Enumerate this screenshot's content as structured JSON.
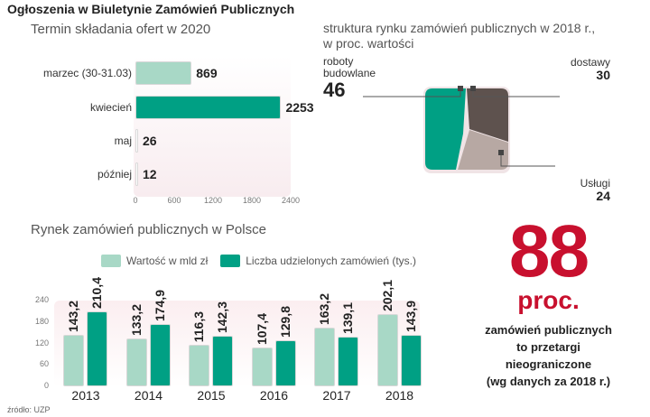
{
  "title": "Ogłoszenia w Biuletynie Zamówień Publicznych",
  "chart_data": [
    {
      "type": "bar",
      "orientation": "horizontal",
      "title": "Termin składania ofert w 2020",
      "categories": [
        "marzec (30-31.03)",
        "kwiecień",
        "maj",
        "później"
      ],
      "values": [
        869,
        2253,
        26,
        12
      ],
      "xticks": [
        "0",
        "600",
        "1200",
        "1800",
        "2400"
      ],
      "xlim": [
        0,
        2400
      ],
      "colors": [
        "#a8d8c6",
        "#00a084",
        "#ffffff",
        "#ffffff"
      ]
    },
    {
      "type": "pie",
      "title": "struktura rynku zamówień publicznych w 2018 r.,",
      "subtitle": "w proc. wartości",
      "slices": [
        {
          "label_line1": "roboty",
          "label_line2": "budowlane",
          "label": "roboty budowlane",
          "value": 46,
          "color": "#00a084"
        },
        {
          "label": "dostawy",
          "value": 30,
          "color": "#5e524e"
        },
        {
          "label": "Usługi",
          "value": 24,
          "color": "#b7a8a3"
        }
      ]
    },
    {
      "type": "bar",
      "title": "Rynek zamówień publicznych w Polsce",
      "categories": [
        "2013",
        "2014",
        "2015",
        "2016",
        "2017",
        "2018"
      ],
      "series": [
        {
          "name": "Wartość w mld zł",
          "values": [
            143.2,
            133.2,
            116.3,
            107.4,
            163.2,
            202.1
          ],
          "labels": [
            "143,2",
            "133,2",
            "116,3",
            "107,4",
            "163,2",
            "202,1"
          ],
          "color": "#a8d8c6"
        },
        {
          "name": "Liczba udzielonych zamówień (tys.)",
          "values": [
            210.4,
            174.9,
            142.3,
            129.8,
            139.1,
            143.9
          ],
          "labels": [
            "210,4",
            "174,9",
            "142,3",
            "129,8",
            "139,1",
            "143,9"
          ],
          "color": "#00a084"
        }
      ],
      "yticks": [
        "0",
        "60",
        "120",
        "180",
        "240"
      ],
      "ylim": [
        0,
        240
      ]
    }
  ],
  "highlight": {
    "number": "88",
    "unit": "proc.",
    "lines": [
      "zamówień publicznych",
      "to przetargi",
      "nieograniczone",
      "(wg danych za 2018 r.)"
    ]
  },
  "source": "źródło: UZP"
}
